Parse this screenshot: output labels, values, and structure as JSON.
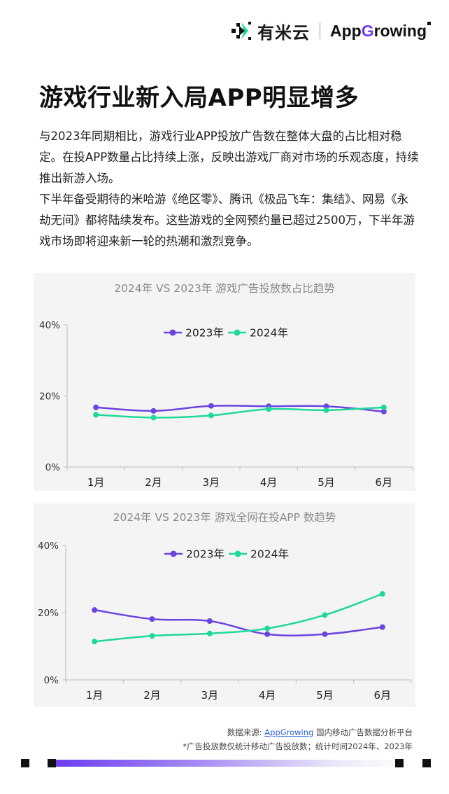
{
  "header": {
    "brand_cn": "有米云",
    "brand_en_pre": "App",
    "brand_en_g": "G",
    "brand_en_post": "rowing"
  },
  "title": "游戏行业新入局APP明显增多",
  "paragraphs": [
    "与2023年同期相比，游戏行业APP投放广告数在整体大盘的占比相对稳定。在投APP数量占比持续上涨，反映出游戏厂商对市场的乐观态度，持续推出新游入场。",
    "下半年备受期待的米哈游《绝区零》、腾讯《极品飞车：集结》、网易《永劫无间》都将陆续发布。这些游戏的全网预约量已超过2500万，下半年游戏市场即将迎来新一轮的热潮和激烈竞争。"
  ],
  "chart_data": [
    {
      "type": "line",
      "title": "2024年 VS 2023年 游戏广告投放数占比趋势",
      "categories": [
        "1月",
        "2月",
        "3月",
        "4月",
        "5月",
        "6月"
      ],
      "series": [
        {
          "name": "2023年",
          "color": "#6a45e0",
          "values": [
            16.8,
            15.8,
            17.2,
            17.1,
            17.1,
            15.6
          ]
        },
        {
          "name": "2024年",
          "color": "#1fd99a",
          "values": [
            14.7,
            13.9,
            14.5,
            16.3,
            16.0,
            16.8
          ]
        }
      ],
      "yticks": [
        "0%",
        "20%",
        "40%"
      ],
      "ylim": [
        0,
        40
      ],
      "legend": "top-center",
      "grid": false
    },
    {
      "type": "line",
      "title": "2024年 VS 2023年 游戏全网在投APP 数趋势",
      "categories": [
        "1月",
        "2月",
        "3月",
        "4月",
        "5月",
        "6月"
      ],
      "series": [
        {
          "name": "2023年",
          "color": "#6a45e0",
          "values": [
            20.8,
            18.1,
            17.5,
            13.6,
            13.6,
            15.7
          ]
        },
        {
          "name": "2024年",
          "color": "#1fd99a",
          "values": [
            11.4,
            13.1,
            13.8,
            15.3,
            19.3,
            25.6
          ]
        }
      ],
      "yticks": [
        "0%",
        "20%",
        "40%"
      ],
      "ylim": [
        0,
        40
      ],
      "legend": "top-center",
      "grid": false
    }
  ],
  "footnotes": {
    "source_prefix": "数据来源: ",
    "source_link": "AppGrowing",
    "source_suffix": " 国内移动广告数据分析平台",
    "note": "*广告投放数仅统计移动广告投放数；统计时间2024年、2023年"
  }
}
